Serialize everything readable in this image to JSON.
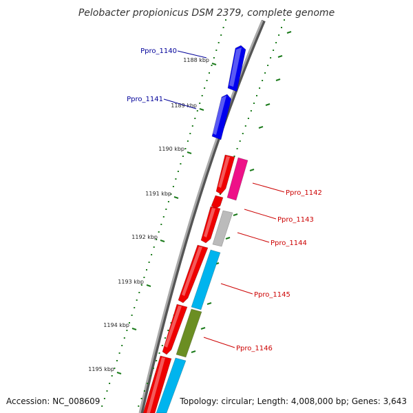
{
  "title": "Pelobacter propionicus DSM 2379, complete genome",
  "footer": {
    "accession": "Accession: NC_008609",
    "summary": "Topology: circular; Length: 4,008,000 bp; Genes: 3,643"
  },
  "ticks": [
    {
      "label": "1188 kbp"
    },
    {
      "label": "1189 kbp"
    },
    {
      "label": "1190 kbp"
    },
    {
      "label": "1191 kbp"
    },
    {
      "label": "1192 kbp"
    },
    {
      "label": "1193 kbp"
    },
    {
      "label": "1194 kbp"
    },
    {
      "label": "1195 kbp"
    }
  ],
  "genes": [
    {
      "name": "Ppro_1140",
      "strand": "minus",
      "color": "#0000ee"
    },
    {
      "name": "Ppro_1141",
      "strand": "minus",
      "color": "#0000ee"
    },
    {
      "name": "Ppro_1142",
      "strand": "plus",
      "color": "#ee1188"
    },
    {
      "name": "Ppro_1143",
      "strand": "plus",
      "color": "#ee0000"
    },
    {
      "name": "Ppro_1144",
      "strand": "plus",
      "color": "#bbbbbb"
    },
    {
      "name": "Ppro_1145",
      "strand": "plus",
      "color": "#00b4ee"
    },
    {
      "name": "Ppro_1146",
      "strand": "plus",
      "color": "#6b8e23"
    }
  ],
  "colors": {
    "minus_label": "#000099",
    "plus_label": "#cc0000",
    "cds": "#ee0000",
    "backbone": "#888888",
    "ticks": "#1a7a1a"
  }
}
